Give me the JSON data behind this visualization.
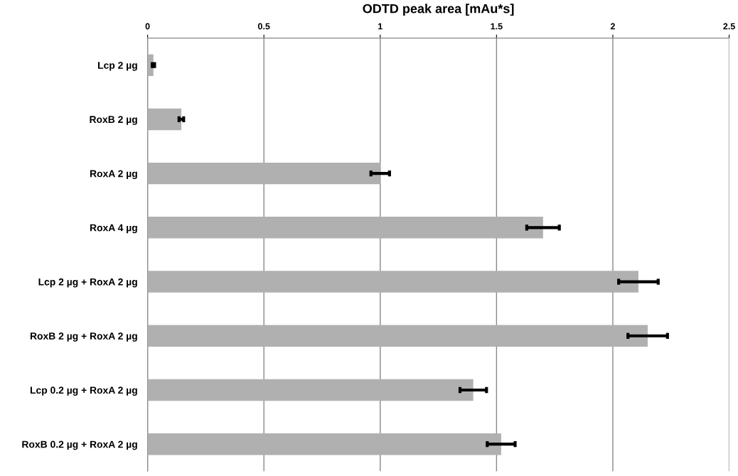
{
  "chart_data": {
    "type": "bar",
    "orientation": "horizontal",
    "xlabel": "ODTD peak area [mAu*s]",
    "categories": [
      "Lcp 2 µg",
      "RoxB 2 µg",
      "RoxA 2 µg",
      "RoxA 4 µg",
      "Lcp 2 µg + RoxA 2 µg",
      "RoxB 2 µg + RoxA 2 µg",
      "Lcp 0.2 µg + RoxA 2 µg",
      "RoxB 0.2 µg + RoxA 2 µg"
    ],
    "values": [
      0.025,
      0.145,
      1.0,
      1.7,
      2.11,
      2.15,
      1.4,
      1.52
    ],
    "errors": [
      0.005,
      0.01,
      0.04,
      0.07,
      0.085,
      0.085,
      0.057,
      0.06
    ],
    "color": "#b0b0b0",
    "xlim": [
      0,
      2.5
    ],
    "xticks": [
      0,
      {
        "value": 0.5,
        "label": "0.5"
      },
      1,
      {
        "value": 1.5,
        "label": "1.5"
      },
      2,
      {
        "value": 2.5,
        "label": "2.5"
      }
    ],
    "grid": "x"
  }
}
